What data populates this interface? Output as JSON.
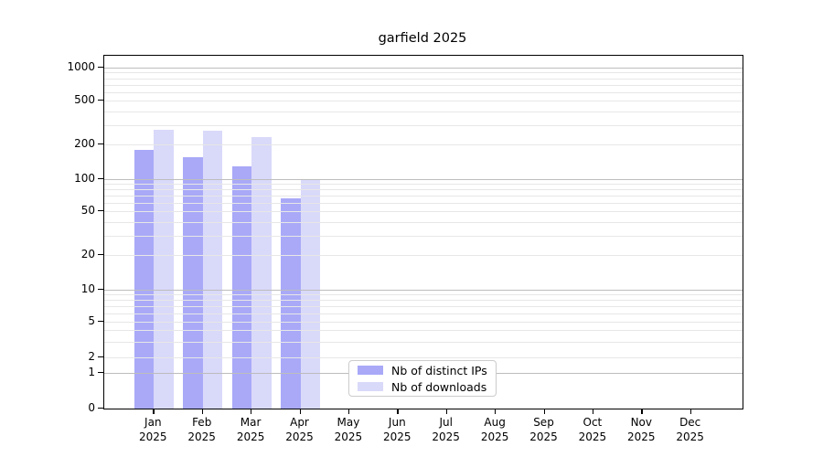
{
  "title": "garfield 2025",
  "chart_data": {
    "type": "bar",
    "scale": "symlog",
    "title": "garfield 2025",
    "xlabel": "",
    "ylabel": "",
    "categories": [
      "Jan",
      "Feb",
      "Mar",
      "Apr",
      "May",
      "Jun",
      "Jul",
      "Aug",
      "Sep",
      "Oct",
      "Nov",
      "Dec"
    ],
    "category_year": "2025",
    "series": [
      {
        "name": "Nb of distinct IPs",
        "color": "#a9a9f8",
        "values": [
          180,
          155,
          130,
          66,
          0,
          0,
          0,
          0,
          0,
          0,
          0,
          0
        ]
      },
      {
        "name": "Nb of downloads",
        "color": "#d9d9fa",
        "values": [
          272,
          265,
          235,
          100,
          0,
          0,
          0,
          0,
          0,
          0,
          0,
          0
        ]
      }
    ],
    "yticks": [
      0,
      1,
      2,
      5,
      10,
      20,
      50,
      100,
      200,
      500,
      1000
    ],
    "ylim": [
      0,
      1200
    ],
    "grid": "horizontal",
    "legend_position": "lower-center"
  },
  "colors": {
    "ips_bar": "#a9a9f8",
    "downloads_bar": "#d9d9fa",
    "grid_major": "#bdbdbd",
    "grid_minor": "#e7e7e7",
    "axis": "#000000",
    "background": "#ffffff"
  }
}
